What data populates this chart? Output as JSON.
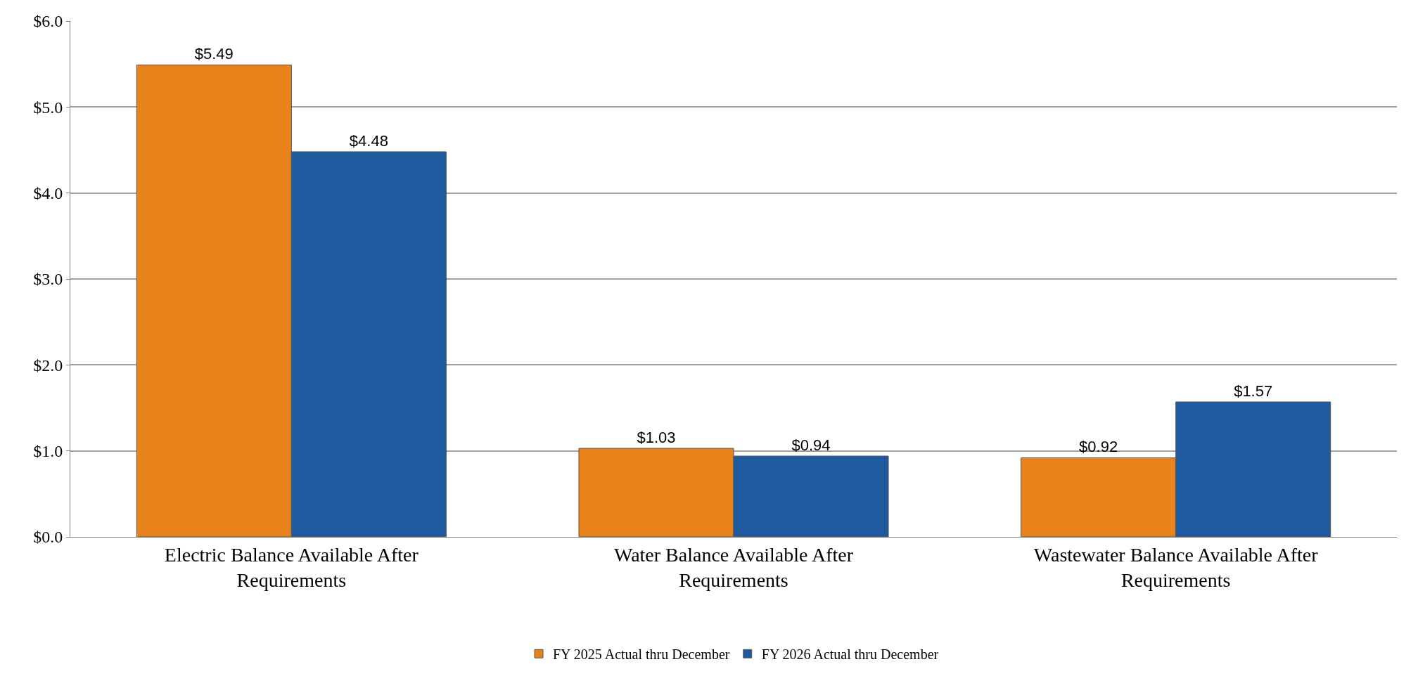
{
  "chart_data": {
    "type": "bar",
    "categories": [
      "Electric Balance Available After Requirements",
      "Water Balance Available After Requirements",
      "Wastewater Balance Available After Requirements"
    ],
    "series": [
      {
        "name": "FY 2025 Actual thru December",
        "color": "#e8821a",
        "values": [
          5.49,
          1.03,
          0.92
        ],
        "value_labels": [
          "$5.49",
          "$1.03",
          "$0.92"
        ]
      },
      {
        "name": "FY 2026 Actual thru December",
        "color": "#1f5a9e",
        "values": [
          4.48,
          0.94,
          1.57
        ],
        "value_labels": [
          "$4.48",
          "$0.94",
          "$1.57"
        ]
      }
    ],
    "ylim": [
      0,
      6
    ],
    "yticks": [
      {
        "value": 0,
        "label": "$0.0"
      },
      {
        "value": 1,
        "label": "$1.0"
      },
      {
        "value": 2,
        "label": "$2.0"
      },
      {
        "value": 3,
        "label": "$3.0"
      },
      {
        "value": 4,
        "label": "$4.0"
      },
      {
        "value": 5,
        "label": "$5.0"
      },
      {
        "value": 6,
        "label": "$6.0"
      }
    ],
    "grid": "y",
    "legend": "bottom"
  }
}
